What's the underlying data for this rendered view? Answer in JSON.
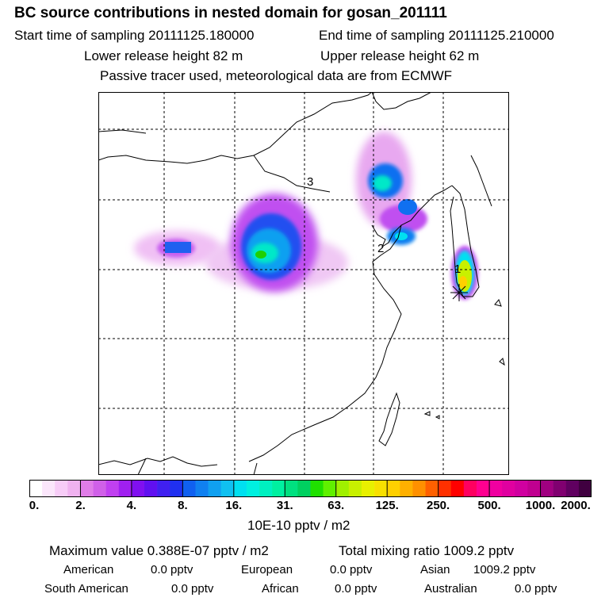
{
  "header": {
    "title": "BC  source contributions in nested domain for gosan_201111",
    "start_label": "Start time of sampling 20111125.180000",
    "end_label": "End time of sampling 20111125.210000",
    "lower_label": "Lower release height   82 m",
    "upper_label": "Upper release height   62 m",
    "note": "Passive tracer used, meteorological data are from ECMWF"
  },
  "map": {
    "labels": [
      "1",
      "2",
      "3"
    ],
    "gridlines": "dashed"
  },
  "colorbar": {
    "ticks": [
      "0.",
      "2.",
      "4.",
      "8.",
      "16.",
      "31.",
      "63.",
      "125.",
      "250.",
      "500.",
      "1000.",
      "2000."
    ],
    "colors": [
      "#ffffff",
      "#fbe6fb",
      "#f7ccf7",
      "#f0b2f0",
      "#e07de8",
      "#d060e8",
      "#c040f0",
      "#a020f0",
      "#8010f0",
      "#6010f0",
      "#4020f0",
      "#2030f0",
      "#1060f0",
      "#1080f0",
      "#10a0f0",
      "#10c0f0",
      "#00e0f0",
      "#00f0e0",
      "#00f0c0",
      "#00f0a0",
      "#00e080",
      "#00d060",
      "#20e000",
      "#60f000",
      "#a0f000",
      "#c8f000",
      "#e8f000",
      "#f8e000",
      "#ffd000",
      "#ffb000",
      "#ff9000",
      "#ff6000",
      "#ff3000",
      "#ff0000",
      "#ff0060",
      "#ff0090",
      "#f000a0",
      "#e000a0",
      "#d000a0",
      "#c00090",
      "#a00080",
      "#800070",
      "#600060",
      "#400040"
    ],
    "units": "10E-10 pptv / m2"
  },
  "summary": {
    "max_label": "Maximum value  0.388E-07 pptv / m2",
    "total_label": "Total mixing ratio     1009.2 pptv",
    "rows": [
      [
        {
          "name": "American",
          "value": "0.0 pptv"
        },
        {
          "name": "European",
          "value": "0.0 pptv"
        },
        {
          "name": "Asian",
          "value": "1009.2 pptv"
        }
      ],
      [
        {
          "name": "South American",
          "value": "0.0 pptv"
        },
        {
          "name": "African",
          "value": "0.0 pptv"
        },
        {
          "name": "Australian",
          "value": "0.0 pptv"
        }
      ]
    ]
  }
}
